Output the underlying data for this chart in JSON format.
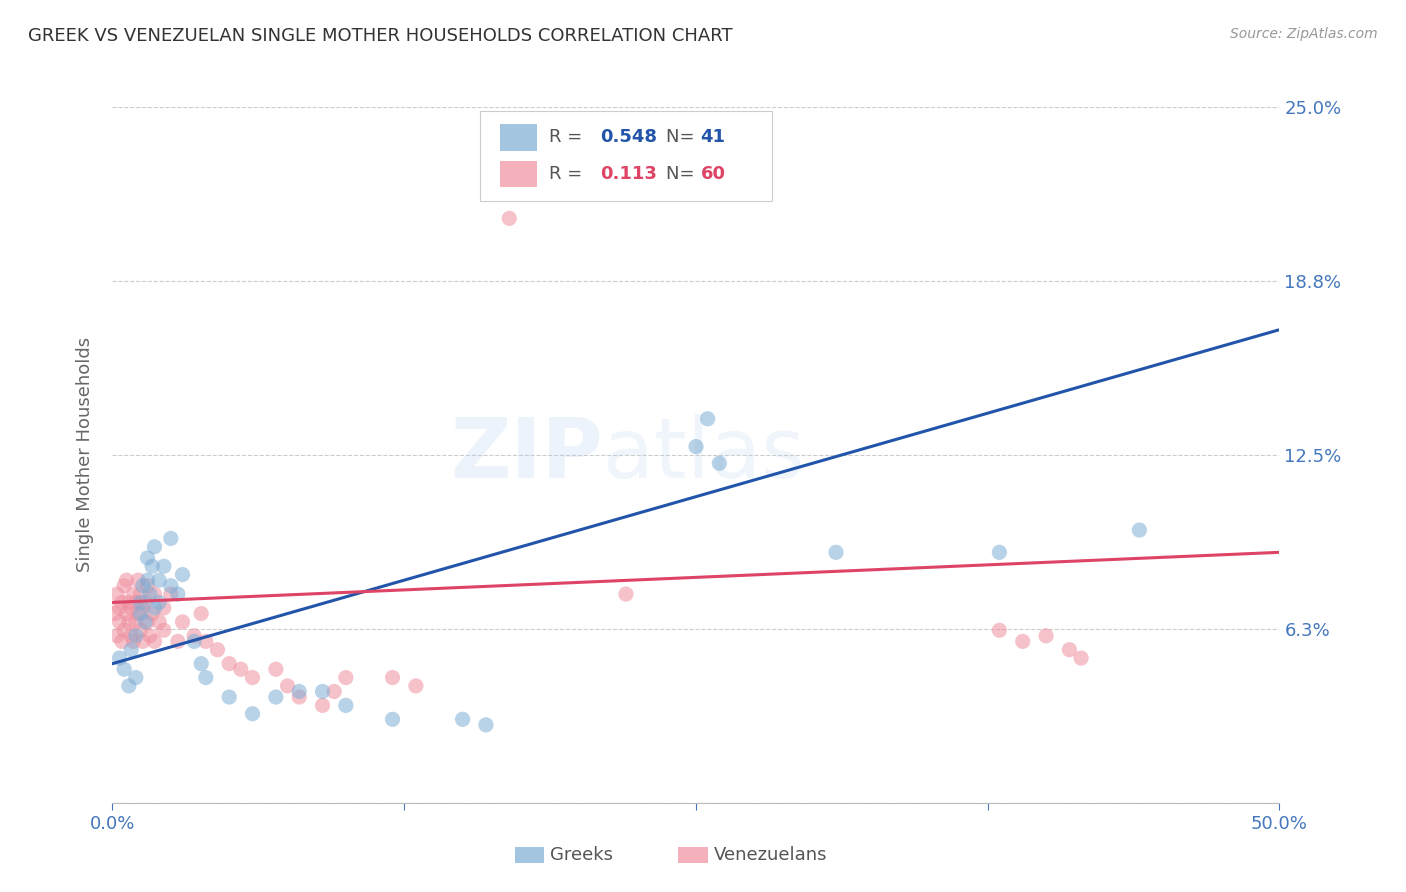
{
  "title": "GREEK VS VENEZUELAN SINGLE MOTHER HOUSEHOLDS CORRELATION CHART",
  "source": "Source: ZipAtlas.com",
  "ylabel": "Single Mother Households",
  "xlim": [
    0.0,
    0.5
  ],
  "ylim": [
    0.0,
    0.25
  ],
  "yticks": [
    0.0,
    0.0625,
    0.125,
    0.1875,
    0.25
  ],
  "ytick_labels": [
    "",
    "6.3%",
    "12.5%",
    "18.8%",
    "25.0%"
  ],
  "xticks": [
    0.0,
    0.125,
    0.25,
    0.375,
    0.5
  ],
  "xtick_labels": [
    "0.0%",
    "",
    "",
    "",
    "50.0%"
  ],
  "watermark": "ZIPatlas",
  "greek_color": "#7eadd4",
  "venezuelan_color": "#f090a0",
  "greek_R": "0.548",
  "greek_N": "41",
  "venezuelan_R": "0.113",
  "venezuelan_N": "60",
  "greek_line_color": "#2255aa",
  "venezuelan_line_color": "#dd4466",
  "greek_line_x": [
    0.0,
    0.5
  ],
  "greek_line_y": [
    0.05,
    0.17
  ],
  "venezuelan_line_x": [
    0.0,
    0.5
  ],
  "venezuelan_line_y": [
    0.072,
    0.09
  ],
  "greek_scatter": [
    [
      0.003,
      0.052
    ],
    [
      0.005,
      0.048
    ],
    [
      0.007,
      0.042
    ],
    [
      0.008,
      0.055
    ],
    [
      0.01,
      0.06
    ],
    [
      0.01,
      0.045
    ],
    [
      0.012,
      0.068
    ],
    [
      0.012,
      0.072
    ],
    [
      0.013,
      0.078
    ],
    [
      0.014,
      0.065
    ],
    [
      0.015,
      0.08
    ],
    [
      0.015,
      0.088
    ],
    [
      0.016,
      0.075
    ],
    [
      0.017,
      0.085
    ],
    [
      0.018,
      0.092
    ],
    [
      0.018,
      0.07
    ],
    [
      0.02,
      0.08
    ],
    [
      0.02,
      0.072
    ],
    [
      0.022,
      0.085
    ],
    [
      0.025,
      0.078
    ],
    [
      0.025,
      0.095
    ],
    [
      0.028,
      0.075
    ],
    [
      0.03,
      0.082
    ],
    [
      0.035,
      0.058
    ],
    [
      0.038,
      0.05
    ],
    [
      0.04,
      0.045
    ],
    [
      0.05,
      0.038
    ],
    [
      0.06,
      0.032
    ],
    [
      0.07,
      0.038
    ],
    [
      0.08,
      0.04
    ],
    [
      0.09,
      0.04
    ],
    [
      0.1,
      0.035
    ],
    [
      0.12,
      0.03
    ],
    [
      0.15,
      0.03
    ],
    [
      0.16,
      0.028
    ],
    [
      0.25,
      0.128
    ],
    [
      0.255,
      0.138
    ],
    [
      0.26,
      0.122
    ],
    [
      0.31,
      0.09
    ],
    [
      0.38,
      0.09
    ],
    [
      0.44,
      0.098
    ]
  ],
  "venezuelan_scatter": [
    [
      0.001,
      0.068
    ],
    [
      0.002,
      0.075
    ],
    [
      0.002,
      0.06
    ],
    [
      0.003,
      0.07
    ],
    [
      0.003,
      0.065
    ],
    [
      0.004,
      0.072
    ],
    [
      0.004,
      0.058
    ],
    [
      0.005,
      0.078
    ],
    [
      0.005,
      0.062
    ],
    [
      0.006,
      0.068
    ],
    [
      0.006,
      0.08
    ],
    [
      0.007,
      0.072
    ],
    [
      0.007,
      0.065
    ],
    [
      0.008,
      0.07
    ],
    [
      0.008,
      0.06
    ],
    [
      0.009,
      0.075
    ],
    [
      0.009,
      0.058
    ],
    [
      0.01,
      0.065
    ],
    [
      0.01,
      0.072
    ],
    [
      0.011,
      0.068
    ],
    [
      0.011,
      0.08
    ],
    [
      0.012,
      0.062
    ],
    [
      0.012,
      0.075
    ],
    [
      0.013,
      0.07
    ],
    [
      0.013,
      0.058
    ],
    [
      0.014,
      0.072
    ],
    [
      0.015,
      0.065
    ],
    [
      0.015,
      0.078
    ],
    [
      0.016,
      0.06
    ],
    [
      0.017,
      0.068
    ],
    [
      0.018,
      0.075
    ],
    [
      0.018,
      0.058
    ],
    [
      0.02,
      0.065
    ],
    [
      0.022,
      0.07
    ],
    [
      0.022,
      0.062
    ],
    [
      0.025,
      0.075
    ],
    [
      0.028,
      0.058
    ],
    [
      0.03,
      0.065
    ],
    [
      0.035,
      0.06
    ],
    [
      0.038,
      0.068
    ],
    [
      0.04,
      0.058
    ],
    [
      0.045,
      0.055
    ],
    [
      0.05,
      0.05
    ],
    [
      0.055,
      0.048
    ],
    [
      0.06,
      0.045
    ],
    [
      0.07,
      0.048
    ],
    [
      0.075,
      0.042
    ],
    [
      0.08,
      0.038
    ],
    [
      0.09,
      0.035
    ],
    [
      0.095,
      0.04
    ],
    [
      0.1,
      0.045
    ],
    [
      0.12,
      0.045
    ],
    [
      0.13,
      0.042
    ],
    [
      0.17,
      0.21
    ],
    [
      0.22,
      0.075
    ],
    [
      0.38,
      0.062
    ],
    [
      0.39,
      0.058
    ],
    [
      0.4,
      0.06
    ],
    [
      0.41,
      0.055
    ],
    [
      0.415,
      0.052
    ]
  ],
  "background_color": "#ffffff",
  "grid_color": "#cccccc",
  "title_color": "#333333",
  "axis_label_color": "#666666",
  "tick_color": "#4477bb",
  "scatter_size": 120
}
